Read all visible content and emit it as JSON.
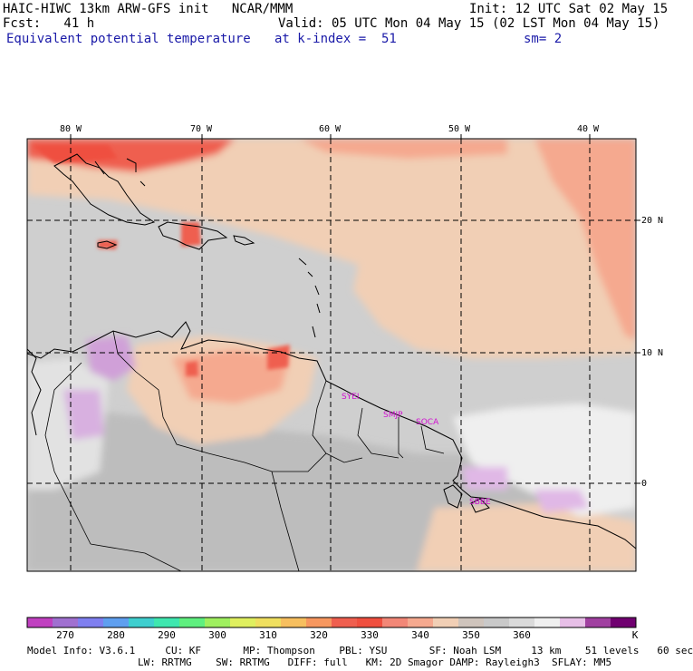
{
  "header": {
    "line1_left": "HAIC-HIWC 13km ARW-GFS init   NCAR/MMM",
    "line1_right": "Init: 12 UTC Sat 02 May 15",
    "line2_left": "Fcst:   41 h",
    "line2_right": "Valid: 05 UTC Mon 04 May 15 (02 LST Mon 04 May 15)",
    "field": "Equivalent potential temperature",
    "level": "at k-index =  51",
    "smoothing": "sm= 2"
  },
  "map": {
    "lon_labels": [
      "80 W",
      "70 W",
      "60 W",
      "50 W",
      "40 W"
    ],
    "lat_labels": [
      "20 N",
      "10 N",
      "0"
    ],
    "stations": [
      "SYEI",
      "SMJP",
      "SOCA",
      "SBBE"
    ]
  },
  "colorbar": {
    "colors": [
      "#c040c0",
      "#a070d0",
      "#7f7fef",
      "#5f9fef",
      "#3fcfcf",
      "#3fe7af",
      "#5fef7f",
      "#9fef5f",
      "#dfef5f",
      "#efdf5f",
      "#f7bf5f",
      "#f7975f",
      "#ef5f4f",
      "#ef4f3f",
      "#f28777",
      "#f5a98f",
      "#f1cfb5",
      "#cfc4bc",
      "#c9c9c9",
      "#dadada",
      "#efefef",
      "#e7bfe7",
      "#a040a0",
      "#700070"
    ],
    "labels": [
      "270",
      "280",
      "290",
      "300",
      "310",
      "320",
      "330",
      "340",
      "350",
      "360"
    ],
    "unit": "K"
  },
  "model_info": {
    "line1": "Model Info: V3.6.1     CU: KF       MP: Thompson    PBL: YSU       SF: Noah LSM     13 km    51 levels   60 sec",
    "line2": "LW: RRTMG    SW: RRTMG   DIFF: full   KM: 2D Smagor DAMP: Rayleigh3  SFLAY: MM5"
  }
}
